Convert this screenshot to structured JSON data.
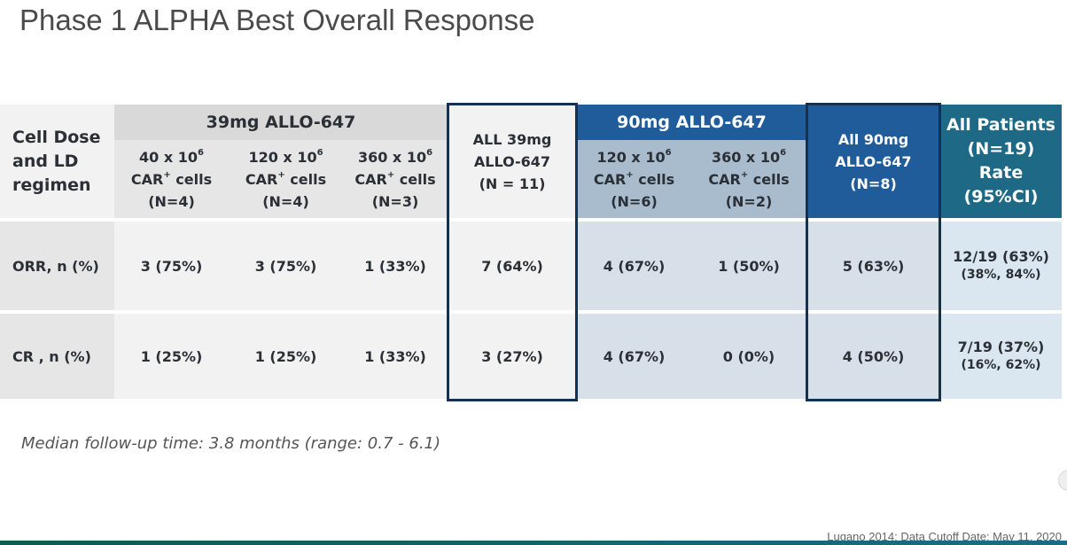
{
  "title": "Phase 1 ALPHA Best Overall Response",
  "table": {
    "row_header": [
      "Cell Dose",
      "and LD",
      "regimen"
    ],
    "group_39": "39mg ALLO-647",
    "group_90": "90mg ALLO-647",
    "columns": [
      {
        "dose": "40 x 10",
        "exp": "6",
        "car": "CAR",
        "cells": " cells",
        "n": "(N=4)"
      },
      {
        "dose": "120 x 10",
        "exp": "6",
        "car": "CAR",
        "cells": " cells",
        "n": "(N=4)"
      },
      {
        "dose": "360 x 10",
        "exp": "6",
        "car": "CAR",
        "cells": " cells",
        "n": "(N=3)"
      },
      {
        "lines": [
          "ALL 39mg",
          "ALLO-647",
          "(N = 11)"
        ]
      },
      {
        "dose": "120 x 10",
        "exp": "6",
        "car": "CAR",
        "cells": " cells",
        "n": "(N=6)"
      },
      {
        "dose": "360 x 10",
        "exp": "6",
        "car": "CAR",
        "cells": " cells",
        "n": "(N=2)"
      },
      {
        "lines": [
          "All 90mg",
          "ALLO-647",
          "(N=8)"
        ]
      },
      {
        "lines": [
          "All Patients",
          "(N=19)",
          "Rate",
          "(95%CI)"
        ]
      }
    ],
    "car_sup": "+",
    "rows": [
      {
        "label": "ORR, n (%)",
        "values": [
          "3 (75%)",
          "3 (75%)",
          "1 (33%)",
          "7 (64%)",
          "4 (67%)",
          "1 (50%)",
          "5 (63%)"
        ],
        "rate": "12/19 (63%)",
        "ci": "(38%, 84%)"
      },
      {
        "label": "CR , n (%)",
        "values": [
          "1 (25%)",
          "1 (25%)",
          "1 (33%)",
          "3 (27%)",
          "4 (67%)",
          "0 (0%)",
          "4 (50%)"
        ],
        "rate": "7/19 (37%)",
        "ci": "(16%, 62%)"
      }
    ]
  },
  "footnote": "Median follow-up time:  3.8 months (range: 0.7 - 6.1)",
  "source": "Lugano 2014; Data Cutoff Date: May 11, 2020",
  "colors": {
    "header_gray": "#d9d9d9",
    "group_90_blue": "#1f5c99",
    "all_patients_teal": "#1e6a86",
    "box_border": "#16304f"
  }
}
